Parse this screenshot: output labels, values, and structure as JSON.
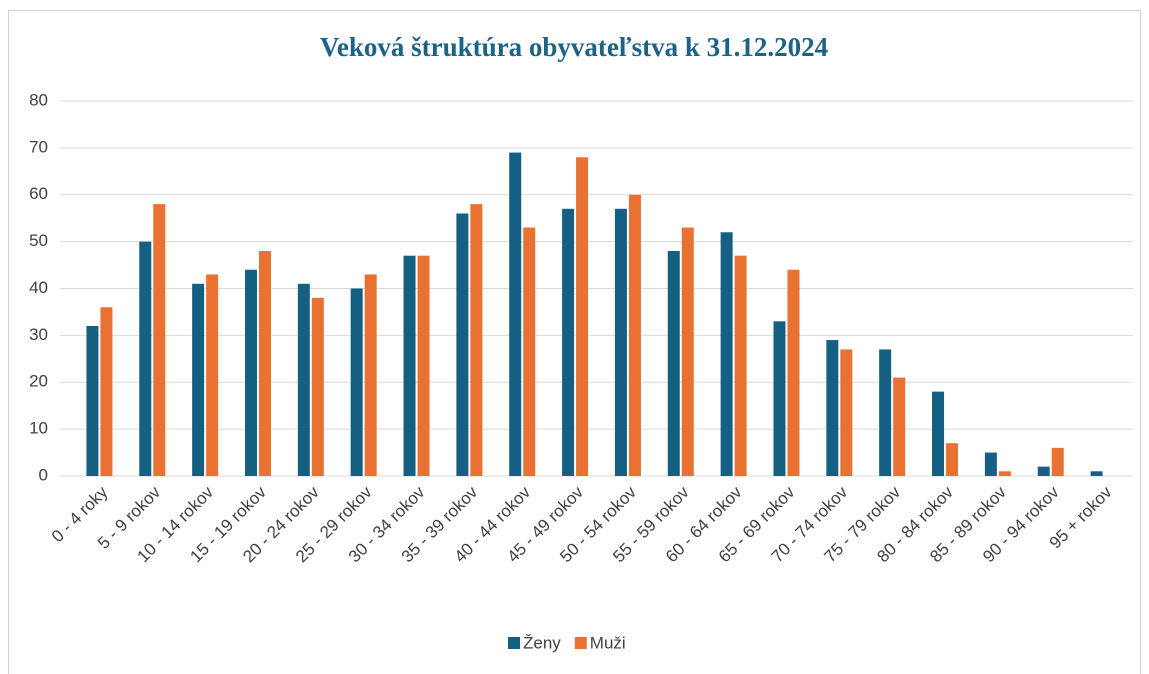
{
  "chart_data": {
    "type": "bar",
    "title": "Veková štruktúra obyvateľstva k 31.12.2024",
    "categories": [
      "0 - 4 roky",
      "5 - 9  rokov",
      "10 - 14 rokov",
      "15 - 19 rokov",
      "20 - 24 rokov",
      "25 - 29 rokov",
      "30 - 34 rokov",
      "35 - 39 rokov",
      "40 - 44 rokov",
      "45 - 49 rokov",
      "50 - 54 rokov",
      "55 - 59 rokov",
      "60 - 64 rokov",
      "65 - 69 rokov",
      "70 - 74 rokov",
      "75 - 79 rokov",
      "80 - 84 rokov",
      "85 - 89 rokov",
      "90 - 94 rokov",
      "95 + rokov"
    ],
    "series": [
      {
        "name": "Ženy",
        "color": "#156082",
        "values": [
          32,
          50,
          41,
          44,
          41,
          40,
          47,
          56,
          69,
          57,
          57,
          48,
          52,
          33,
          29,
          27,
          18,
          5,
          2,
          1
        ]
      },
      {
        "name": "Muži",
        "color": "#e97132",
        "values": [
          36,
          58,
          43,
          48,
          38,
          43,
          47,
          58,
          53,
          68,
          60,
          53,
          47,
          44,
          27,
          21,
          7,
          1,
          6,
          0
        ]
      }
    ],
    "ylim": [
      0,
      80
    ],
    "yticks": [
      0,
      10,
      20,
      30,
      40,
      50,
      60,
      70,
      80
    ],
    "grid": true,
    "legend": "bottom"
  }
}
